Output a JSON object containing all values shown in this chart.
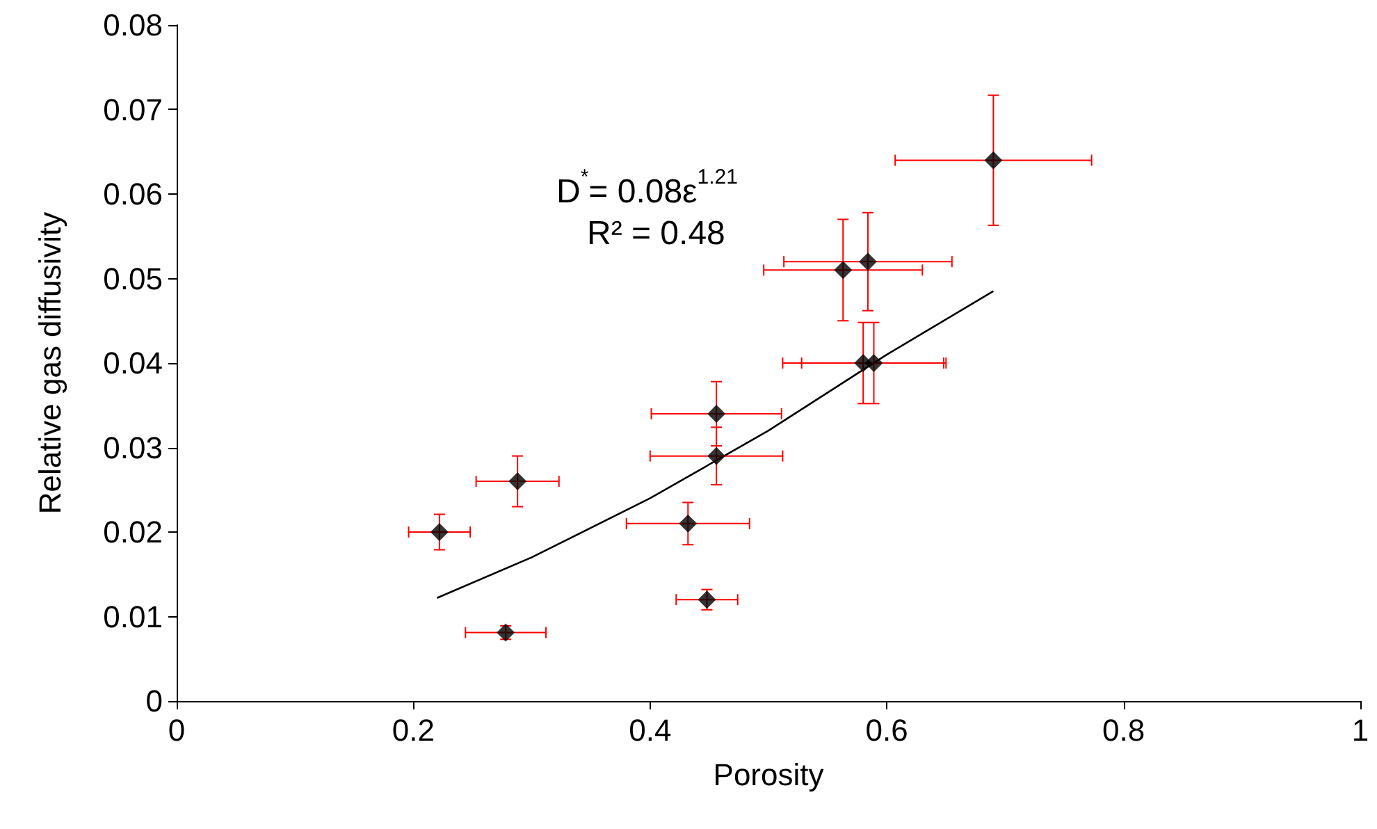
{
  "chart_data": {
    "type": "scatter",
    "xlabel": "Porosity",
    "ylabel": "Relative gas diffusivity",
    "xlim": [
      0,
      1
    ],
    "xticks": [
      0,
      0.2,
      0.4,
      0.6,
      0.8,
      1
    ],
    "ylim": [
      0,
      0.08
    ],
    "yticks": [
      0,
      0.01,
      0.02,
      0.03,
      0.04,
      0.05,
      0.06,
      0.07,
      0.08
    ],
    "grid": false,
    "marker": "diamond",
    "annotations": [
      "D$^{*}$= 0.08ε$^{1.21}$",
      "R² = 0.48"
    ],
    "series": [
      {
        "color": "#000000",
        "x": [
          0.222,
          0.278,
          0.288,
          0.432,
          0.448,
          0.456,
          0.456,
          0.563,
          0.584,
          0.58,
          0.589,
          0.69
        ],
        "values": [
          0.02,
          0.0081,
          0.026,
          0.021,
          0.012,
          0.029,
          0.034,
          0.051,
          0.052,
          0.04,
          0.04,
          0.064
        ],
        "errors": [
          0.0021,
          0.0008,
          0.003,
          0.0025,
          0.0012,
          0.0034,
          0.0038,
          0.006,
          0.0058,
          0.0048,
          0.0048,
          0.0077
        ],
        "xerrors": [
          0.026,
          0.034,
          0.035,
          0.052,
          0.026,
          0.056,
          0.055,
          0.067,
          0.071,
          0.068,
          0.061,
          0.083
        ]
      },
      {
        "type": "line",
        "color": "#000000",
        "marker": "none",
        "x": [
          0.22,
          0.3,
          0.4,
          0.5,
          0.6,
          0.69
        ],
        "values": [
          0.0122,
          0.017,
          0.024,
          0.032,
          0.041,
          0.0485
        ]
      }
    ]
  }
}
